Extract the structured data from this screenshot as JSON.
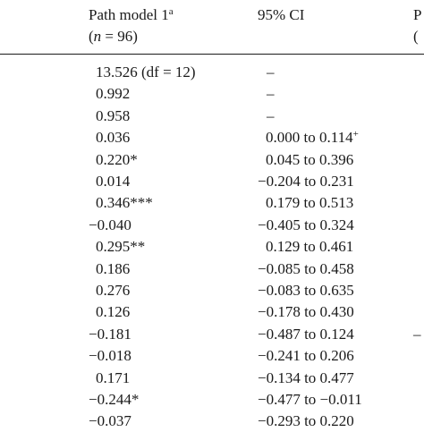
{
  "header": {
    "col1_line1": "Path model 1",
    "col1_sup": "a",
    "col1_n_var": "n",
    "col1_n_rest": " = 96)",
    "col2_line1": "95% CI",
    "col3_fragment": "P",
    "col3_fragment2": "("
  },
  "rows": [
    {
      "value": "13.526 (df = 12)",
      "ci": "–",
      "ci_sup": "",
      "edge": ""
    },
    {
      "value": "0.992",
      "ci": "–",
      "ci_sup": "",
      "edge": ""
    },
    {
      "value": "0.958",
      "ci": "–",
      "ci_sup": "",
      "edge": ""
    },
    {
      "value": "0.036",
      "ci": "0.000 to 0.114",
      "ci_sup": "+",
      "edge": ""
    },
    {
      "value": "0.220*",
      "ci": "0.045 to 0.396",
      "ci_sup": "",
      "edge": ""
    },
    {
      "value": "0.014",
      "ci": "−0.204 to 0.231",
      "ci_sup": "",
      "edge": ""
    },
    {
      "value": "0.346***",
      "ci": "0.179 to 0.513",
      "ci_sup": "",
      "edge": ""
    },
    {
      "value": "−0.040",
      "ci": "−0.405 to 0.324",
      "ci_sup": "",
      "edge": ""
    },
    {
      "value": "0.295**",
      "ci": "0.129 to 0.461",
      "ci_sup": "",
      "edge": ""
    },
    {
      "value": "0.186",
      "ci": "−0.085 to 0.458",
      "ci_sup": "",
      "edge": ""
    },
    {
      "value": "0.276",
      "ci": "−0.083 to 0.635",
      "ci_sup": "",
      "edge": ""
    },
    {
      "value": "0.126",
      "ci": "−0.178 to 0.430",
      "ci_sup": "",
      "edge": ""
    },
    {
      "value": "−0.181",
      "ci": "−0.487 to 0.124",
      "ci_sup": "",
      "edge": "–"
    },
    {
      "value": "−0.018",
      "ci": "−0.241 to 0.206",
      "ci_sup": "",
      "edge": ""
    },
    {
      "value": "0.171",
      "ci": "−0.134 to 0.477",
      "ci_sup": "",
      "edge": ""
    },
    {
      "value": "−0.244*",
      "ci": "−0.477 to −0.011",
      "ci_sup": "",
      "edge": ""
    },
    {
      "value": "−0.037",
      "ci": "−0.293 to 0.220",
      "ci_sup": "",
      "edge": ""
    }
  ]
}
